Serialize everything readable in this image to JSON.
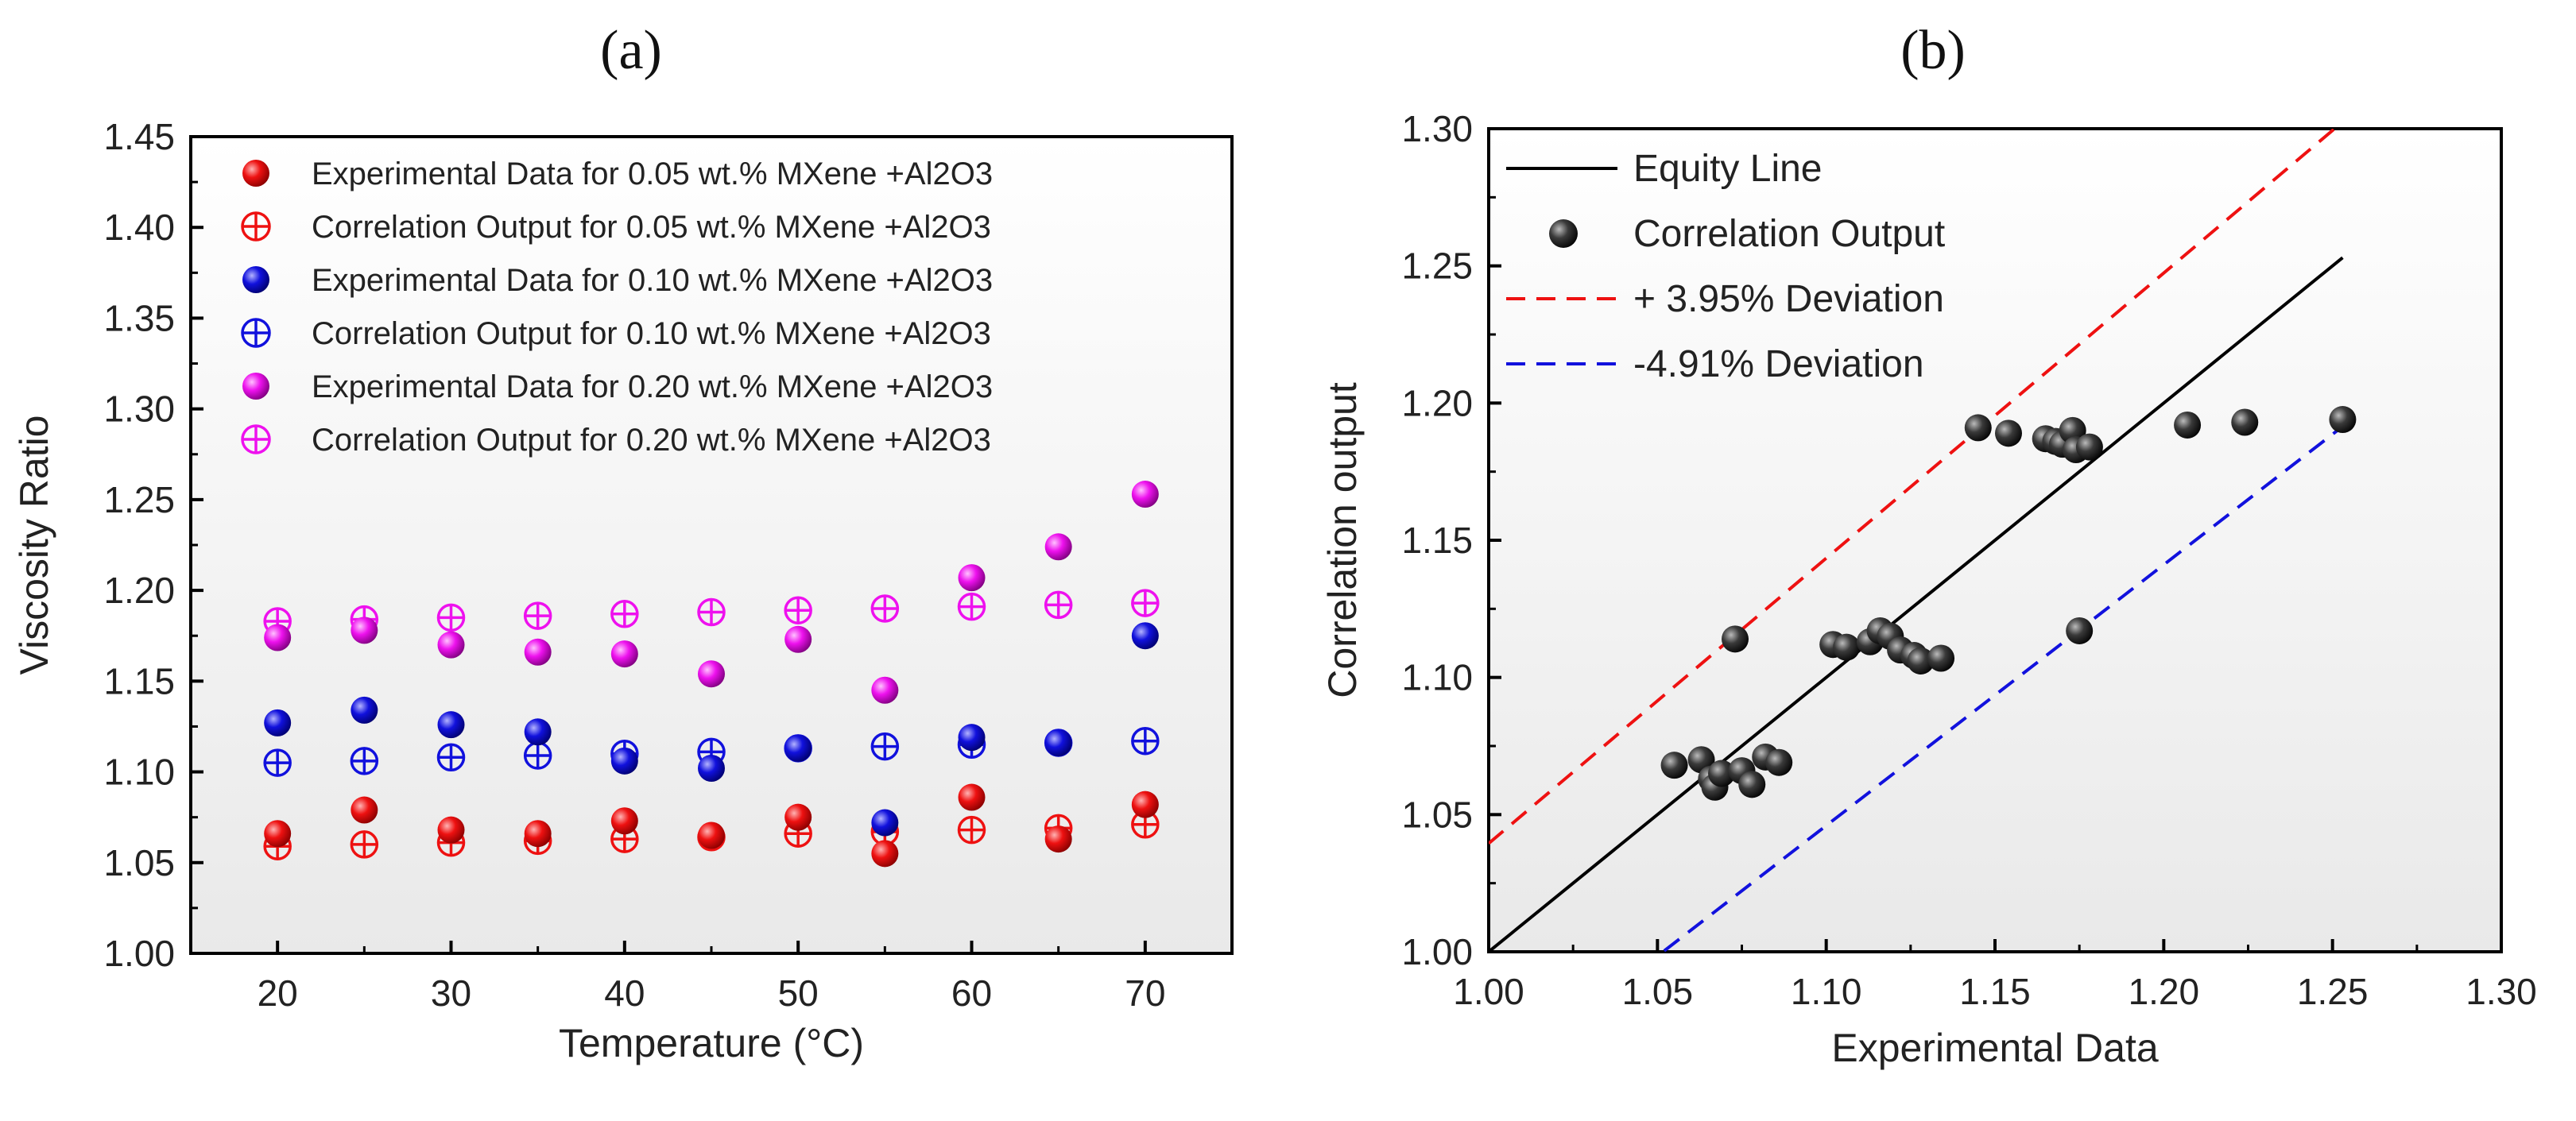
{
  "chart_data": [
    {
      "type": "scatter",
      "panel_label": "(a)",
      "title": "",
      "xlabel": "Temperature (°C)",
      "ylabel": "Viscosity Ratio",
      "xlim": [
        15,
        75
      ],
      "ylim": [
        1.0,
        1.45
      ],
      "xticks": [
        "20",
        "30",
        "40",
        "50",
        "60",
        "70"
      ],
      "yticks": [
        "1.00",
        "1.05",
        "1.10",
        "1.15",
        "1.20",
        "1.25",
        "1.30",
        "1.35",
        "1.40",
        "1.45"
      ],
      "grid": false,
      "legend_position": "top-left",
      "x": [
        20,
        25,
        30,
        35,
        40,
        45,
        50,
        55,
        60,
        65,
        70
      ],
      "series": [
        {
          "name": "Experimental Data for 0.05 wt.% MXene +Al2O3",
          "color": "#ee1111",
          "marker": "filled-sphere",
          "values": [
            1.066,
            1.079,
            1.068,
            1.066,
            1.073,
            1.065,
            1.075,
            1.055,
            1.086,
            1.063,
            1.082
          ]
        },
        {
          "name": "Correlation Output for 0.05 wt.% MXene +Al2O3",
          "color": "#ee1111",
          "marker": "circle-plus",
          "values": [
            1.059,
            1.06,
            1.061,
            1.062,
            1.063,
            1.064,
            1.066,
            1.067,
            1.068,
            1.069,
            1.071
          ]
        },
        {
          "name": "Experimental Data for 0.10 wt.% MXene +Al2O3",
          "color": "#1111dd",
          "marker": "filled-sphere",
          "values": [
            1.127,
            1.134,
            1.126,
            1.122,
            1.106,
            1.102,
            1.113,
            1.072,
            1.119,
            1.116,
            1.175
          ]
        },
        {
          "name": "Correlation Output for 0.10 wt.% MXene +Al2O3",
          "color": "#1111dd",
          "marker": "circle-plus",
          "values": [
            1.105,
            1.106,
            1.108,
            1.109,
            1.11,
            1.111,
            1.113,
            1.114,
            1.115,
            1.116,
            1.117
          ]
        },
        {
          "name": "Experimental Data for 0.20 wt.% MXene +Al2O3",
          "color": "#ee11ee",
          "marker": "filled-sphere",
          "values": [
            1.174,
            1.178,
            1.17,
            1.166,
            1.165,
            1.154,
            1.173,
            1.145,
            1.207,
            1.224,
            1.253
          ]
        },
        {
          "name": "Correlation Output for 0.20 wt.% MXene +Al2O3",
          "color": "#ee11ee",
          "marker": "circle-plus",
          "values": [
            1.183,
            1.184,
            1.185,
            1.186,
            1.187,
            1.188,
            1.189,
            1.19,
            1.191,
            1.192,
            1.193
          ]
        }
      ]
    },
    {
      "type": "scatter",
      "panel_label": "(b)",
      "title": "",
      "xlabel": "Experimental Data",
      "ylabel": "Correlation output",
      "xlim": [
        1.0,
        1.3
      ],
      "ylim": [
        1.0,
        1.3
      ],
      "xticks": [
        "1.00",
        "1.05",
        "1.10",
        "1.15",
        "1.20",
        "1.25",
        "1.30"
      ],
      "yticks": [
        "1.00",
        "1.05",
        "1.10",
        "1.15",
        "1.20",
        "1.25",
        "1.30"
      ],
      "grid": false,
      "legend_position": "top-left",
      "lines": [
        {
          "name": "Equity Line",
          "color": "#000000",
          "style": "solid",
          "slope": 1.0,
          "x_range": [
            1.0,
            1.253
          ]
        },
        {
          "name": "+ 3.95% Deviation",
          "color": "#ee1111",
          "style": "dashed",
          "slope": 1.0395,
          "x_range": [
            1.0,
            1.3
          ]
        },
        {
          "name": "-4.91% Deviation",
          "color": "#1111dd",
          "style": "dashed",
          "slope": 0.9509,
          "x_range": [
            1.052,
            1.253
          ]
        }
      ],
      "series": [
        {
          "name": "Correlation Output",
          "color": "#333333",
          "marker": "filled-sphere",
          "points": [
            [
              1.055,
              1.068
            ],
            [
              1.063,
              1.07
            ],
            [
              1.066,
              1.063
            ],
            [
              1.067,
              1.06
            ],
            [
              1.069,
              1.065
            ],
            [
              1.073,
              1.114
            ],
            [
              1.075,
              1.066
            ],
            [
              1.078,
              1.061
            ],
            [
              1.082,
              1.071
            ],
            [
              1.086,
              1.069
            ],
            [
              1.102,
              1.112
            ],
            [
              1.106,
              1.111
            ],
            [
              1.113,
              1.113
            ],
            [
              1.116,
              1.117
            ],
            [
              1.119,
              1.115
            ],
            [
              1.122,
              1.11
            ],
            [
              1.126,
              1.108
            ],
            [
              1.128,
              1.106
            ],
            [
              1.134,
              1.107
            ],
            [
              1.145,
              1.191
            ],
            [
              1.154,
              1.189
            ],
            [
              1.165,
              1.187
            ],
            [
              1.168,
              1.186
            ],
            [
              1.17,
              1.185
            ],
            [
              1.173,
              1.19
            ],
            [
              1.174,
              1.183
            ],
            [
              1.175,
              1.117
            ],
            [
              1.178,
              1.184
            ],
            [
              1.207,
              1.192
            ],
            [
              1.224,
              1.193
            ],
            [
              1.253,
              1.194
            ]
          ]
        }
      ]
    }
  ]
}
